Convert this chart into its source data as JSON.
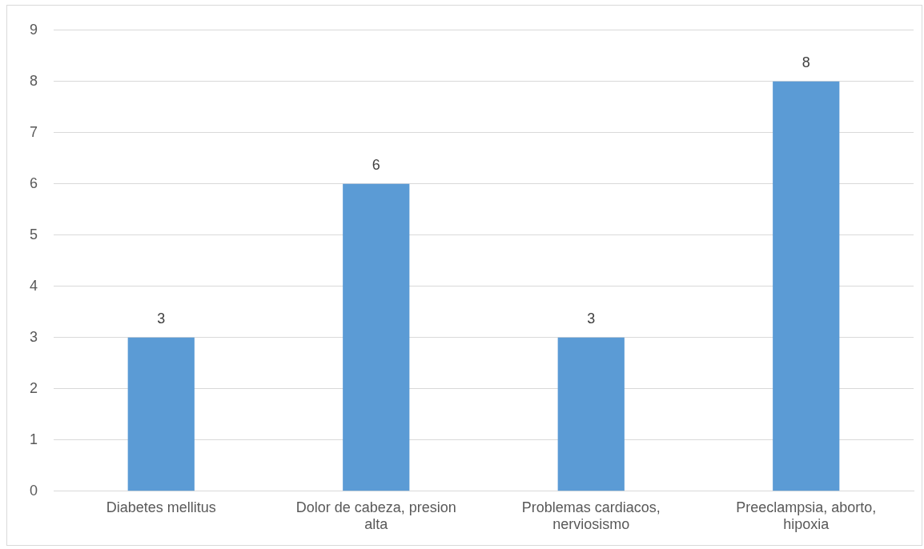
{
  "chart_data": {
    "type": "bar",
    "categories": [
      "Diabetes mellitus",
      "Dolor de cabeza, presion alta",
      "Problemas cardiacos, nerviosismo",
      "Preeclampsia, aborto, hipoxia"
    ],
    "values": [
      3,
      6,
      3,
      8
    ],
    "color": "#5b9bd5",
    "ylim": [
      0,
      9
    ],
    "yticks": [
      0,
      1,
      2,
      3,
      4,
      5,
      6,
      7,
      8,
      9
    ],
    "grid": "y",
    "data_labels": true,
    "legend": false
  }
}
